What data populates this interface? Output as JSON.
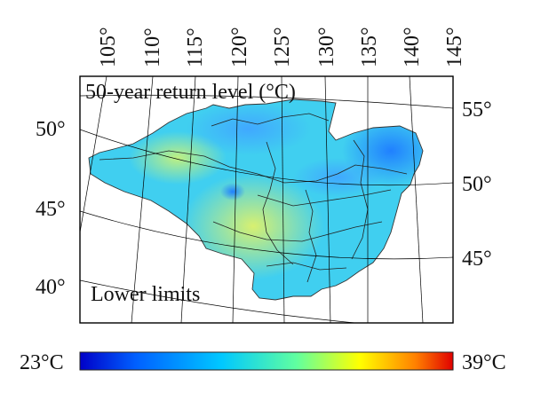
{
  "map": {
    "title": "50-year return level (°C)",
    "subtitle": "Lower limits",
    "top_longitudes": [
      "105°",
      "110°",
      "115°",
      "120°",
      "125°",
      "130°",
      "135°",
      "140°",
      "145°"
    ],
    "left_latitudes": [
      "50°",
      "45°",
      "40°"
    ],
    "right_latitudes": [
      "55°",
      "50°",
      "45°"
    ],
    "field_color": "#3fd0f0",
    "hotspots": [
      {
        "lon": 118,
        "lat": 46,
        "level": 30
      },
      {
        "lon": 112,
        "lat": 49,
        "level": 29
      },
      {
        "lon": 137,
        "lat": 53,
        "level": 24
      },
      {
        "lon": 119,
        "lat": 51,
        "level": 25
      }
    ]
  },
  "colorbar": {
    "min_label": "23°C",
    "max_label": "39°C",
    "min": 23,
    "max": 39,
    "stops": [
      "#0000c8",
      "#0060ff",
      "#00c8ff",
      "#60ffa0",
      "#ffff00",
      "#ff8000",
      "#e00000"
    ]
  }
}
